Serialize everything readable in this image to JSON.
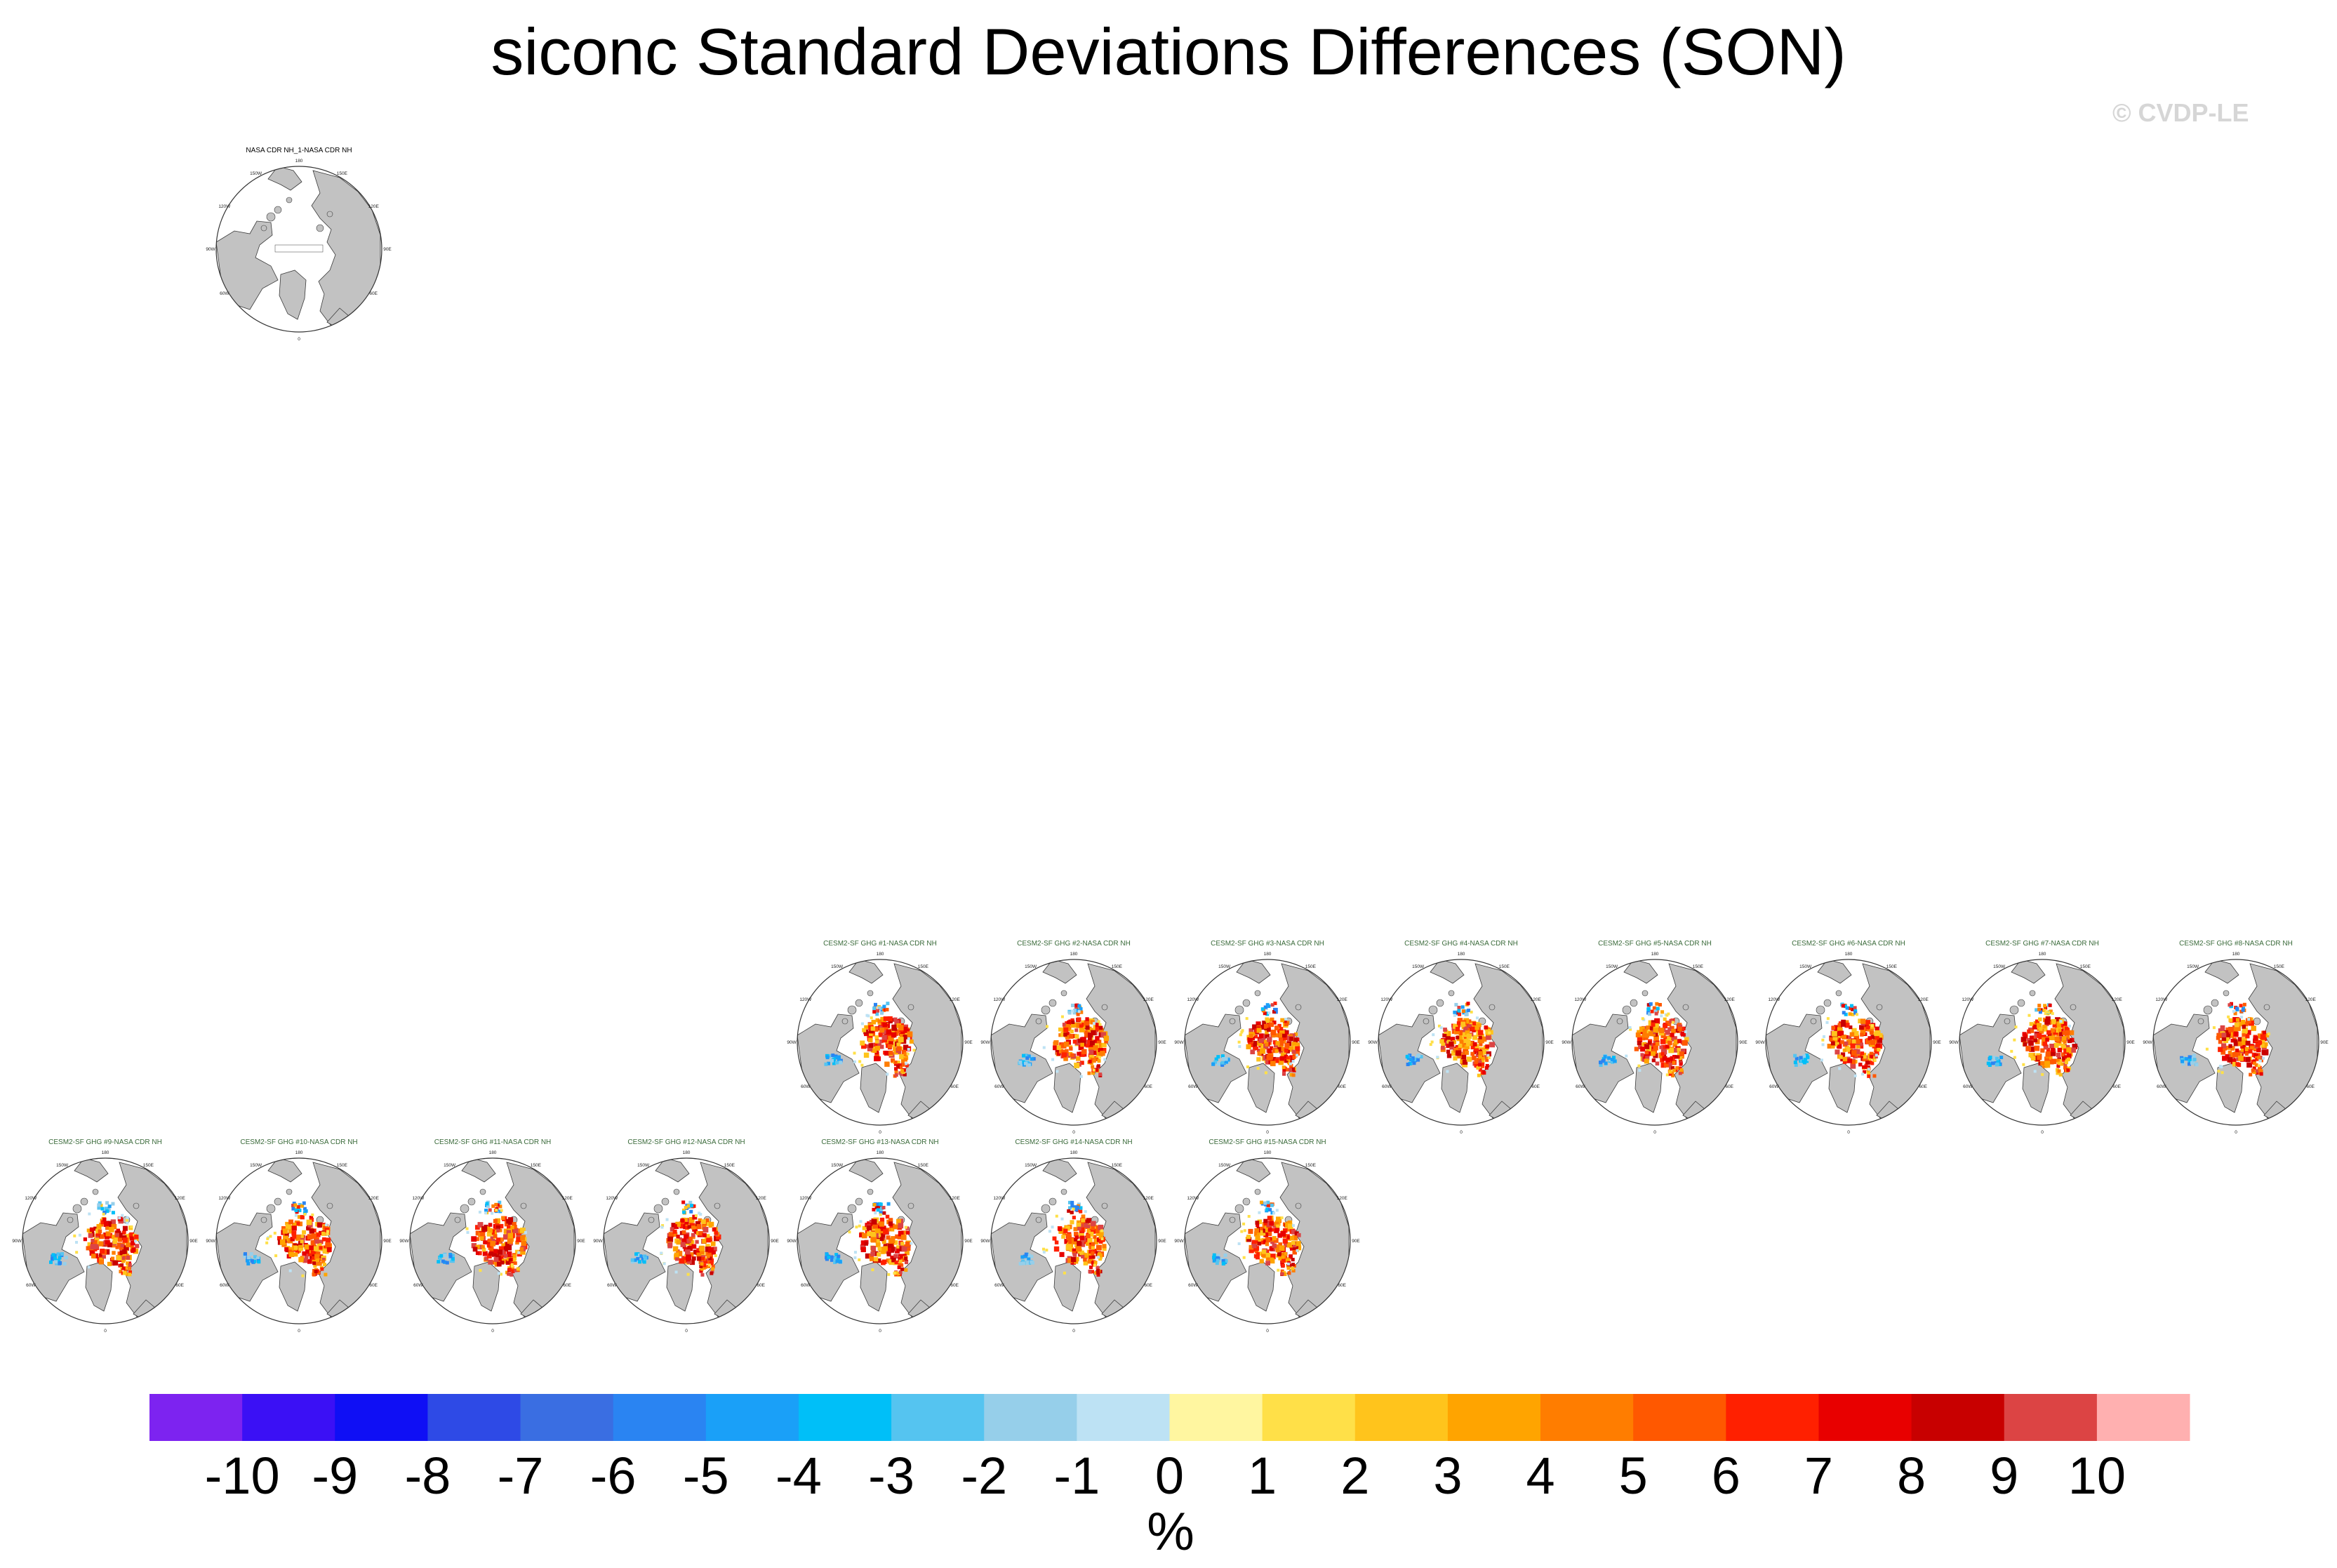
{
  "title": "siconc Standard Deviations Differences (SON)",
  "copyright": "© CVDP-LE",
  "colors": {
    "land": "#c2c2c2",
    "ocean": "#ffffff",
    "coast": "#3a3a3a",
    "panel_title_obs": "#000000",
    "panel_title_model": "#3a6a3a"
  },
  "lat_lon_labels": [
    "180",
    "150W",
    "150E",
    "120W",
    "120E",
    "90W",
    "90E",
    "60W",
    "60E",
    "0"
  ],
  "panels": [
    {
      "title": "NASA CDR NH_1-NASA CDR NH",
      "row": 0,
      "col": 1,
      "kind": "obs"
    },
    {
      "title": "CESM2-SF GHG #1-NASA CDR NH",
      "row": 1,
      "col": 4,
      "kind": "model"
    },
    {
      "title": "CESM2-SF GHG #2-NASA CDR NH",
      "row": 1,
      "col": 5,
      "kind": "model"
    },
    {
      "title": "CESM2-SF GHG #3-NASA CDR NH",
      "row": 1,
      "col": 6,
      "kind": "model"
    },
    {
      "title": "CESM2-SF GHG #4-NASA CDR NH",
      "row": 1,
      "col": 7,
      "kind": "model"
    },
    {
      "title": "CESM2-SF GHG #5-NASA CDR NH",
      "row": 1,
      "col": 8,
      "kind": "model"
    },
    {
      "title": "CESM2-SF GHG #6-NASA CDR NH",
      "row": 1,
      "col": 9,
      "kind": "model"
    },
    {
      "title": "CESM2-SF GHG #7-NASA CDR NH",
      "row": 1,
      "col": 10,
      "kind": "model"
    },
    {
      "title": "CESM2-SF GHG #8-NASA CDR NH",
      "row": 1,
      "col": 11,
      "kind": "model"
    },
    {
      "title": "CESM2-SF GHG #9-NASA CDR NH",
      "row": 2,
      "col": 0,
      "kind": "model"
    },
    {
      "title": "CESM2-SF GHG #10-NASA CDR NH",
      "row": 2,
      "col": 1,
      "kind": "model"
    },
    {
      "title": "CESM2-SF GHG #11-NASA CDR NH",
      "row": 2,
      "col": 2,
      "kind": "model"
    },
    {
      "title": "CESM2-SF GHG #12-NASA CDR NH",
      "row": 2,
      "col": 3,
      "kind": "model"
    },
    {
      "title": "CESM2-SF GHG #13-NASA CDR NH",
      "row": 2,
      "col": 4,
      "kind": "model"
    },
    {
      "title": "CESM2-SF GHG #14-NASA CDR NH",
      "row": 2,
      "col": 5,
      "kind": "model"
    },
    {
      "title": "CESM2-SF GHG #15-NASA CDR NH",
      "row": 2,
      "col": 6,
      "kind": "model"
    }
  ],
  "colorbar": {
    "unit": "%",
    "labels": [
      "-10",
      "-9",
      "-8",
      "-7",
      "-6",
      "-5",
      "-4",
      "-3",
      "-2",
      "-1",
      "0",
      "1",
      "2",
      "3",
      "4",
      "5",
      "6",
      "7",
      "8",
      "9",
      "10"
    ],
    "colors": [
      "#7d23f0",
      "#3b10f5",
      "#0f0ff5",
      "#2e4ae6",
      "#3a6ee2",
      "#2a84f2",
      "#1aa0f8",
      "#00bff8",
      "#55c4f0",
      "#96cfea",
      "#bde2f4",
      "#fff6a0",
      "#ffe048",
      "#ffc41c",
      "#ffa400",
      "#ff7d00",
      "#ff5800",
      "#ff2000",
      "#e80000",
      "#c80000",
      "#dc4444",
      "#ffb0b0"
    ]
  }
}
